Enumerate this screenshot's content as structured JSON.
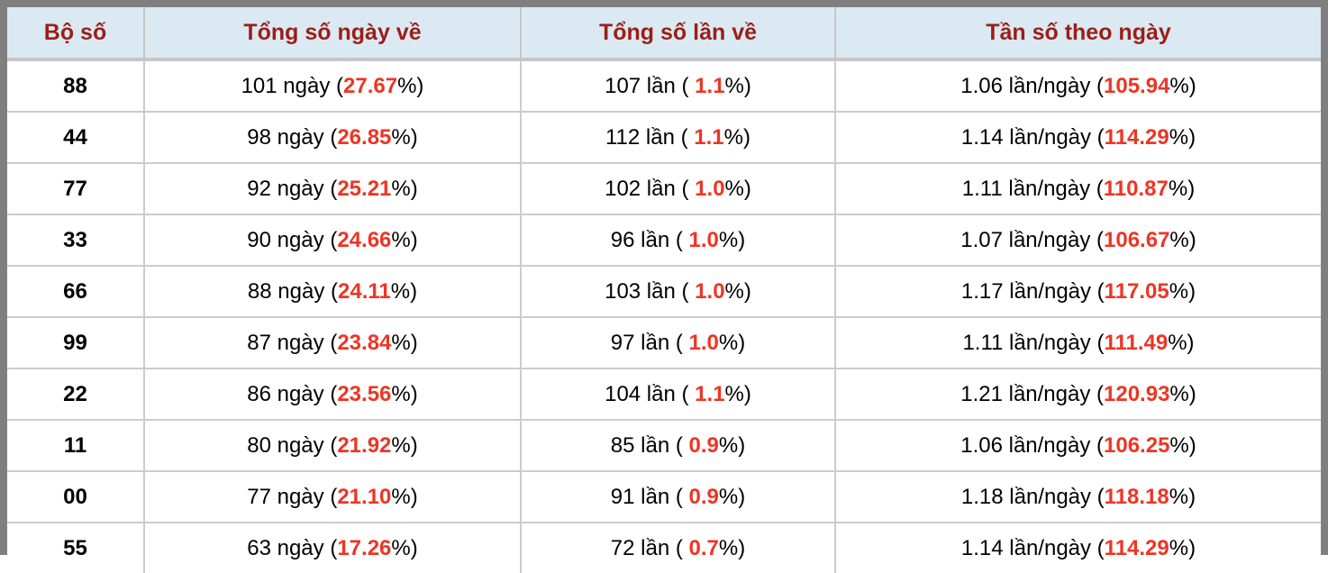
{
  "colors": {
    "outer_border": "#7f7f7f",
    "header_bg": "#dbe9f3",
    "header_text": "#9b1e17",
    "accent_red": "#ee3524",
    "body_text": "#000000",
    "grid_line": "#cccccc"
  },
  "table": {
    "headers": [
      "Bộ số",
      "Tổng số ngày về",
      "Tổng số lần về",
      "Tần số theo ngày"
    ],
    "rows": [
      {
        "pair": "88",
        "days": {
          "pre": "101 ngày (",
          "red": "27.67",
          "post": "%)"
        },
        "times": {
          "pre": "107 lần ( ",
          "red": "1.1",
          "post": "%)"
        },
        "freq": {
          "pre": "1.06 lần/ngày (",
          "red": "105.94",
          "post": "%)"
        }
      },
      {
        "pair": "44",
        "days": {
          "pre": "98 ngày (",
          "red": "26.85",
          "post": "%)"
        },
        "times": {
          "pre": "112 lần ( ",
          "red": "1.1",
          "post": "%)"
        },
        "freq": {
          "pre": "1.14 lần/ngày (",
          "red": "114.29",
          "post": "%)"
        }
      },
      {
        "pair": "77",
        "days": {
          "pre": "92 ngày (",
          "red": "25.21",
          "post": "%)"
        },
        "times": {
          "pre": "102 lần ( ",
          "red": "1.0",
          "post": "%)"
        },
        "freq": {
          "pre": "1.11 lần/ngày (",
          "red": "110.87",
          "post": "%)"
        }
      },
      {
        "pair": "33",
        "days": {
          "pre": "90 ngày (",
          "red": "24.66",
          "post": "%)"
        },
        "times": {
          "pre": "96 lần ( ",
          "red": "1.0",
          "post": "%)"
        },
        "freq": {
          "pre": "1.07 lần/ngày (",
          "red": "106.67",
          "post": "%)"
        }
      },
      {
        "pair": "66",
        "days": {
          "pre": "88 ngày (",
          "red": "24.11",
          "post": "%)"
        },
        "times": {
          "pre": "103 lần ( ",
          "red": "1.0",
          "post": "%)"
        },
        "freq": {
          "pre": "1.17 lần/ngày (",
          "red": "117.05",
          "post": "%)"
        }
      },
      {
        "pair": "99",
        "days": {
          "pre": "87 ngày (",
          "red": "23.84",
          "post": "%)"
        },
        "times": {
          "pre": "97 lần ( ",
          "red": "1.0",
          "post": "%)"
        },
        "freq": {
          "pre": "1.11 lần/ngày (",
          "red": "111.49",
          "post": "%)"
        }
      },
      {
        "pair": "22",
        "days": {
          "pre": "86 ngày (",
          "red": "23.56",
          "post": "%)"
        },
        "times": {
          "pre": "104 lần ( ",
          "red": "1.1",
          "post": "%)"
        },
        "freq": {
          "pre": "1.21 lần/ngày (",
          "red": "120.93",
          "post": "%)"
        }
      },
      {
        "pair": "11",
        "days": {
          "pre": "80 ngày (",
          "red": "21.92",
          "post": "%)"
        },
        "times": {
          "pre": "85 lần ( ",
          "red": "0.9",
          "post": "%)"
        },
        "freq": {
          "pre": "1.06 lần/ngày (",
          "red": "106.25",
          "post": "%)"
        }
      },
      {
        "pair": "00",
        "days": {
          "pre": "77 ngày (",
          "red": "21.10",
          "post": "%)"
        },
        "times": {
          "pre": "91 lần ( ",
          "red": "0.9",
          "post": "%)"
        },
        "freq": {
          "pre": "1.18 lần/ngày (",
          "red": "118.18",
          "post": "%)"
        }
      },
      {
        "pair": "55",
        "days": {
          "pre": "63 ngày (",
          "red": "17.26",
          "post": "%)"
        },
        "times": {
          "pre": "72 lần ( ",
          "red": "0.7",
          "post": "%)"
        },
        "freq": {
          "pre": "1.14 lần/ngày (",
          "red": "114.29",
          "post": "%)"
        }
      }
    ]
  }
}
